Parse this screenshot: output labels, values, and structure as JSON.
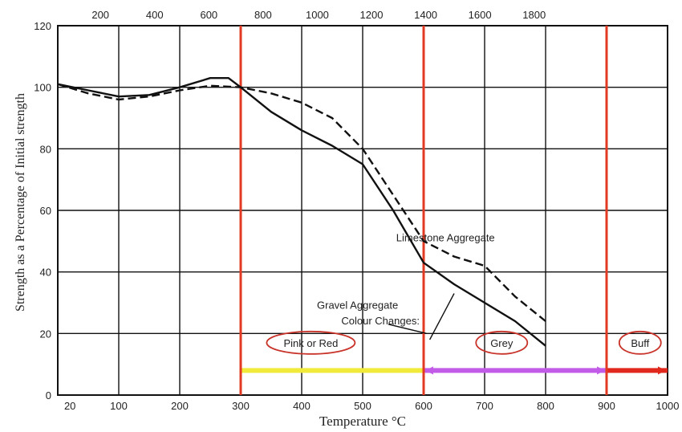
{
  "chart_data": {
    "type": "line",
    "title": "",
    "xlabel": "Temperature °C",
    "ylabel": "Strength as a Percentage of Initial strength",
    "x_bottom_ticks": [
      "20",
      "100",
      "200",
      "300",
      "400",
      "500",
      "600",
      "700",
      "800",
      "900",
      "1000"
    ],
    "x_top_ticks": [
      "200",
      "400",
      "600",
      "800",
      "1000",
      "1200",
      "1400",
      "1600",
      "1800"
    ],
    "y_ticks": [
      "0",
      "20",
      "40",
      "60",
      "80",
      "100",
      "120"
    ],
    "xlim": [
      0,
      1000
    ],
    "ylim": [
      0,
      120
    ],
    "grid": true,
    "series": [
      {
        "name": "Limestone Aggregate",
        "style": "dashed",
        "x": [
          0,
          50,
          100,
          150,
          200,
          250,
          300,
          350,
          400,
          450,
          500,
          550,
          600,
          650,
          700,
          750,
          800
        ],
        "y": [
          101,
          98,
          96,
          97,
          99,
          100.5,
          100,
          98,
          95,
          90,
          80,
          65,
          50,
          45,
          42,
          32,
          24
        ]
      },
      {
        "name": "Gravel Aggregate",
        "style": "solid",
        "x": [
          0,
          50,
          100,
          150,
          200,
          250,
          280,
          300,
          350,
          400,
          450,
          500,
          550,
          600,
          650,
          700,
          750,
          800
        ],
        "y": [
          101,
          99,
          97,
          97.5,
          100,
          103,
          103,
          100,
          92,
          86,
          81,
          75,
          60,
          43,
          36,
          30,
          24,
          16
        ]
      }
    ],
    "annotations": {
      "limestone_label": "Limestone Aggregate",
      "gravel_label": "Gravel Aggregate",
      "colour_changes": "Colour Changes:"
    },
    "colour_bands": [
      {
        "label": "Pink or Red",
        "from": 300,
        "to": 600,
        "color": "#f2ea3a"
      },
      {
        "label": "Grey",
        "from": 600,
        "to": 900,
        "color": "#c25be8"
      },
      {
        "label": "Buff",
        "from": 900,
        "to": 1000,
        "color": "#e0281c"
      }
    ],
    "vertical_markers": [
      300,
      600,
      900
    ],
    "colors": {
      "grid": "#111111",
      "marker_line": "#e23a22",
      "ellipse": "#c8332a",
      "curve": "#111111"
    }
  }
}
